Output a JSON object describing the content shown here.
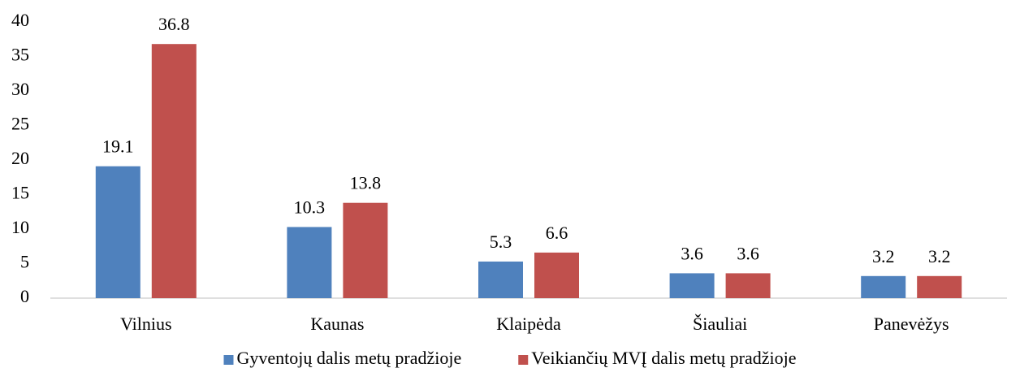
{
  "chart_data": {
    "type": "bar",
    "categories": [
      "Vilnius",
      "Kaunas",
      "Klaipėda",
      "Šiauliai",
      "Panevėžys"
    ],
    "series": [
      {
        "name": "Gyventojų dalis metų pradžioje",
        "color": "#4f81bd",
        "values": [
          19.1,
          10.3,
          5.3,
          3.6,
          3.2
        ]
      },
      {
        "name": "Veikiančių MVĮ dalis metų pradžioje",
        "color": "#c0504d",
        "values": [
          36.8,
          13.8,
          6.6,
          3.6,
          3.2
        ]
      }
    ],
    "ylim": [
      0,
      40
    ],
    "yticks": [
      0,
      5,
      10,
      15,
      20,
      25,
      30,
      35,
      40
    ],
    "grid": false,
    "legend": "bottom"
  }
}
